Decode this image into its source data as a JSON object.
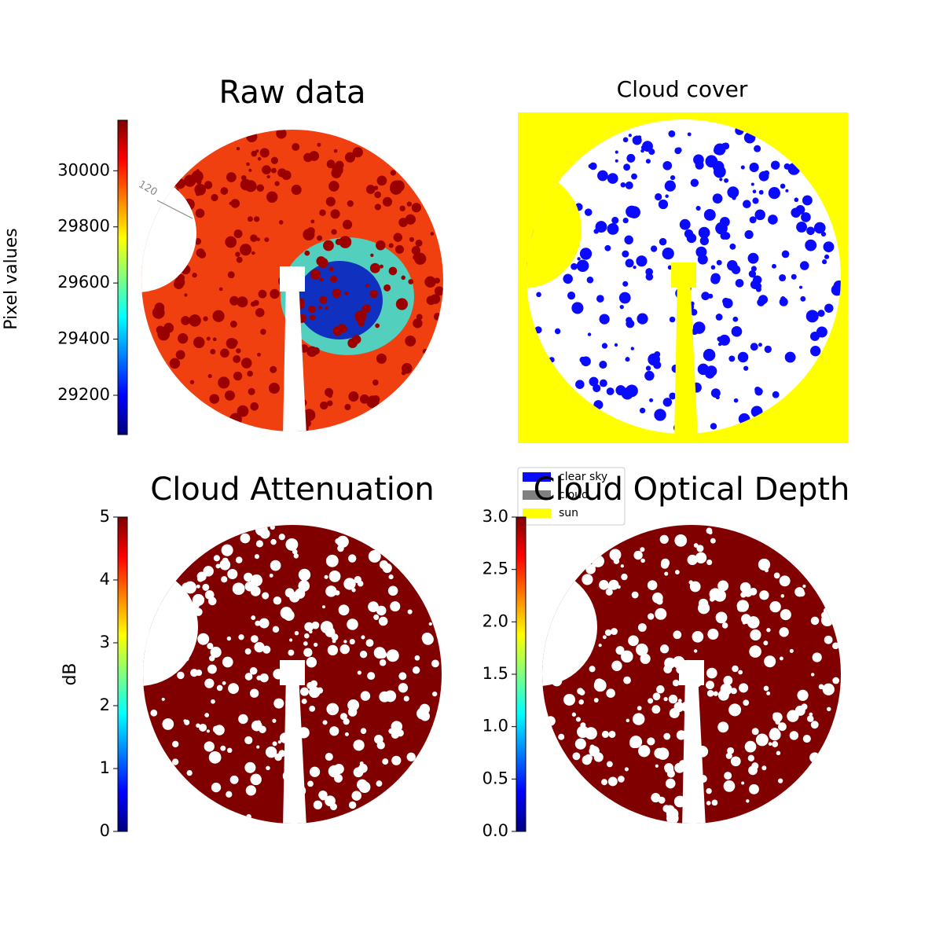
{
  "chart_data": [
    {
      "type": "image",
      "title": "Raw data",
      "ylabel": "Pixel values",
      "colormap": "jet",
      "ylim": [
        29060,
        30180
      ],
      "yticks": [
        29200,
        29400,
        29600,
        29800,
        30000
      ],
      "annotations": [
        "120"
      ]
    },
    {
      "type": "image",
      "title": "Cloud cover",
      "legend": "lower left",
      "legend_entries": [
        {
          "name": "clear sky",
          "color": "#0a0aff"
        },
        {
          "name": "cloud",
          "color": "#808080"
        },
        {
          "name": "sun",
          "color": "#ffff00"
        }
      ]
    },
    {
      "type": "image",
      "title": "Cloud Attenuation",
      "ylabel": "dB",
      "colormap": "jet",
      "ylim": [
        0,
        5
      ],
      "yticks": [
        0,
        1,
        2,
        3,
        4,
        5
      ]
    },
    {
      "type": "image",
      "title": "Cloud Optical Depth",
      "colormap": "jet",
      "ylim": [
        0,
        3
      ],
      "yticks": [
        {
          "value": 0,
          "label": "0.0"
        },
        0.5,
        {
          "value": 1,
          "label": "1.0"
        },
        1.5,
        {
          "value": 2,
          "label": "2.0"
        },
        2.5,
        {
          "value": 3,
          "label": "3.0"
        }
      ]
    }
  ]
}
